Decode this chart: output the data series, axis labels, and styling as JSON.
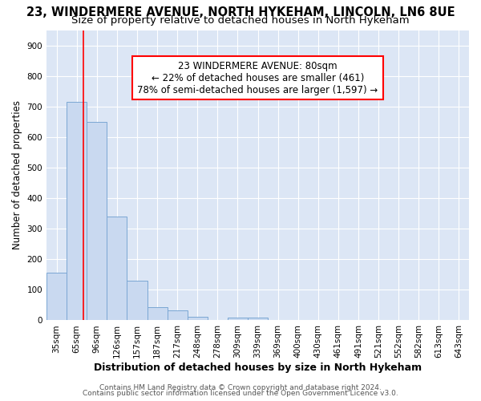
{
  "title1": "23, WINDERMERE AVENUE, NORTH HYKEHAM, LINCOLN, LN6 8UE",
  "title2": "Size of property relative to detached houses in North Hykeham",
  "xlabel": "Distribution of detached houses by size in North Hykeham",
  "ylabel": "Number of detached properties",
  "bar_color": "#c9d9f0",
  "bar_edge_color": "#7ba7d4",
  "categories": [
    "35sqm",
    "65sqm",
    "96sqm",
    "126sqm",
    "157sqm",
    "187sqm",
    "217sqm",
    "248sqm",
    "278sqm",
    "309sqm",
    "339sqm",
    "369sqm",
    "400sqm",
    "430sqm",
    "461sqm",
    "491sqm",
    "521sqm",
    "552sqm",
    "582sqm",
    "613sqm",
    "643sqm"
  ],
  "values": [
    155,
    715,
    650,
    340,
    130,
    42,
    33,
    12,
    0,
    8,
    8,
    0,
    0,
    0,
    0,
    0,
    0,
    0,
    0,
    0,
    0
  ],
  "ylim": [
    0,
    950
  ],
  "yticks": [
    0,
    100,
    200,
    300,
    400,
    500,
    600,
    700,
    800,
    900
  ],
  "red_line_x": 1.32,
  "annotation_line1": "23 WINDERMERE AVENUE: 80sqm",
  "annotation_line2": "← 22% of detached houses are smaller (461)",
  "annotation_line3": "78% of semi-detached houses are larger (1,597) →",
  "footer1": "Contains HM Land Registry data © Crown copyright and database right 2024.",
  "footer2": "Contains public sector information licensed under the Open Government Licence v3.0.",
  "background_color": "#dce6f5",
  "grid_color": "#ffffff",
  "fig_background": "#ffffff",
  "title1_fontsize": 10.5,
  "title2_fontsize": 9.5,
  "tick_fontsize": 7.5,
  "ylabel_fontsize": 8.5,
  "xlabel_fontsize": 9,
  "annotation_fontsize": 8.5,
  "footer_fontsize": 6.5
}
